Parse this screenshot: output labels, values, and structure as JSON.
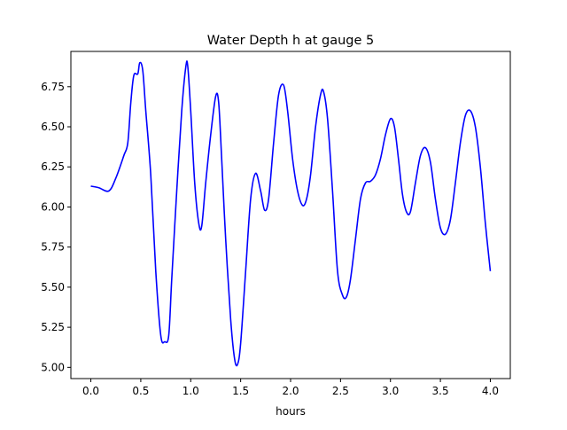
{
  "chart_data": {
    "type": "line",
    "title": "Water Depth h at gauge 5",
    "xlabel": "hours",
    "ylabel": "",
    "xlim": [
      -0.2,
      4.2
    ],
    "ylim": [
      4.93,
      6.97
    ],
    "xticks": [
      0.0,
      0.5,
      1.0,
      1.5,
      2.0,
      2.5,
      3.0,
      3.5,
      4.0
    ],
    "xtick_labels": [
      "0.0",
      "0.5",
      "1.0",
      "1.5",
      "2.0",
      "2.5",
      "3.0",
      "3.5",
      "4.0"
    ],
    "yticks": [
      5.0,
      5.25,
      5.5,
      5.75,
      6.0,
      6.25,
      6.5,
      6.75
    ],
    "ytick_labels": [
      "5.00",
      "5.25",
      "5.50",
      "5.75",
      "6.00",
      "6.25",
      "6.50",
      "6.75"
    ],
    "grid": false,
    "series": [
      {
        "color": "#0000ff",
        "x": [
          0.0,
          0.08,
          0.18,
          0.25,
          0.33,
          0.37,
          0.4,
          0.43,
          0.47,
          0.49,
          0.52,
          0.55,
          0.6,
          0.65,
          0.7,
          0.74,
          0.78,
          0.81,
          0.86,
          0.91,
          0.95,
          0.97,
          1.0,
          1.04,
          1.08,
          1.11,
          1.15,
          1.2,
          1.25,
          1.28,
          1.31,
          1.35,
          1.4,
          1.44,
          1.47,
          1.5,
          1.55,
          1.6,
          1.65,
          1.7,
          1.74,
          1.78,
          1.83,
          1.88,
          1.93,
          1.97,
          2.02,
          2.07,
          2.12,
          2.16,
          2.2,
          2.25,
          2.3,
          2.33,
          2.37,
          2.42,
          2.47,
          2.52,
          2.56,
          2.6,
          2.65,
          2.7,
          2.75,
          2.8,
          2.85,
          2.9,
          2.95,
          3.0,
          3.04,
          3.08,
          3.12,
          3.16,
          3.2,
          3.25,
          3.3,
          3.35,
          3.4,
          3.45,
          3.5,
          3.55,
          3.6,
          3.65,
          3.7,
          3.75,
          3.8,
          3.85,
          3.9,
          3.95,
          4.0
        ],
        "y": [
          6.13,
          6.12,
          6.1,
          6.18,
          6.32,
          6.4,
          6.65,
          6.82,
          6.83,
          6.9,
          6.85,
          6.6,
          6.2,
          5.6,
          5.2,
          5.16,
          5.2,
          5.55,
          6.1,
          6.6,
          6.87,
          6.88,
          6.6,
          6.15,
          5.9,
          5.88,
          6.15,
          6.45,
          6.69,
          6.65,
          6.3,
          5.8,
          5.3,
          5.05,
          5.02,
          5.15,
          5.6,
          6.05,
          6.21,
          6.1,
          5.98,
          6.05,
          6.4,
          6.7,
          6.76,
          6.6,
          6.3,
          6.1,
          6.01,
          6.05,
          6.2,
          6.5,
          6.7,
          6.72,
          6.55,
          6.1,
          5.6,
          5.45,
          5.44,
          5.55,
          5.8,
          6.05,
          6.15,
          6.16,
          6.2,
          6.3,
          6.45,
          6.55,
          6.5,
          6.3,
          6.08,
          5.97,
          5.97,
          6.15,
          6.32,
          6.37,
          6.28,
          6.05,
          5.87,
          5.83,
          5.92,
          6.15,
          6.4,
          6.57,
          6.6,
          6.5,
          6.25,
          5.9,
          5.6
        ]
      }
    ]
  }
}
